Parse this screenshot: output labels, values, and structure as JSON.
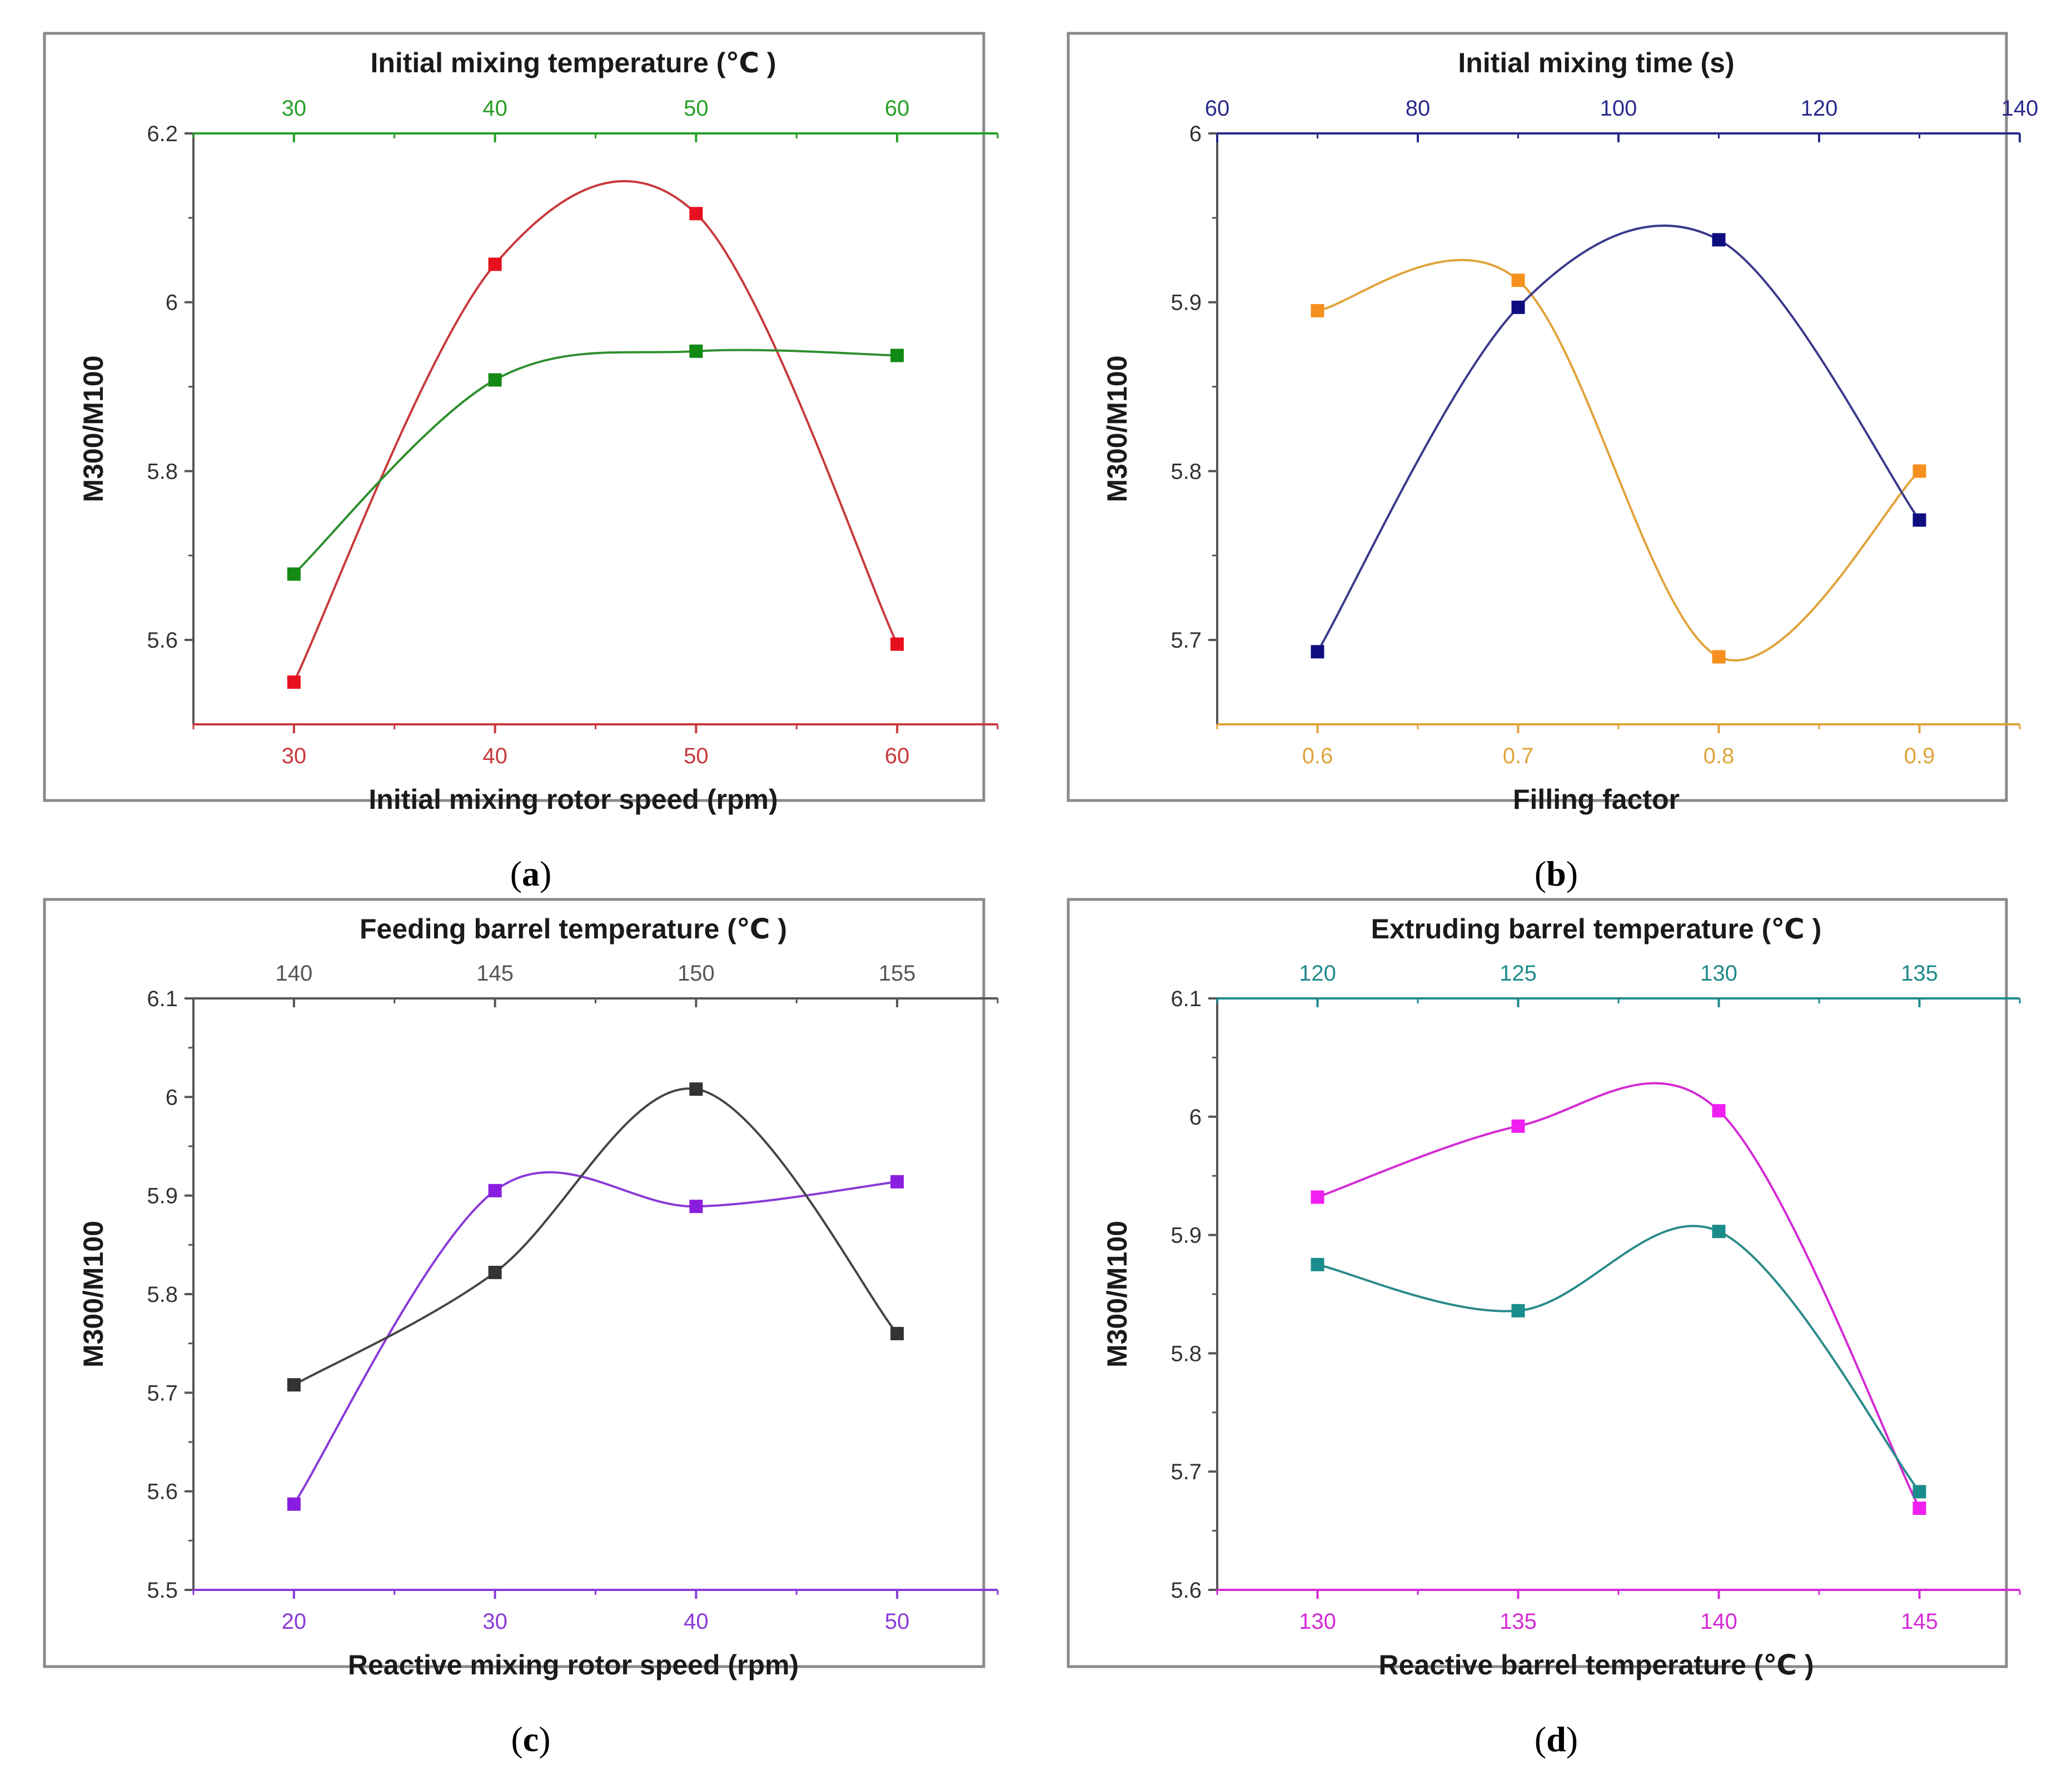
{
  "chart_data": [
    {
      "id": "a",
      "type": "line",
      "caption": "a",
      "ylabel": "M300/M100",
      "ylim": [
        5.5,
        6.2
      ],
      "yticks": [
        5.6,
        5.8,
        6.0,
        6.2
      ],
      "bottom_axis": {
        "title": "Initial mixing rotor speed (rpm)",
        "color": "#c8393c",
        "range": [
          25,
          65
        ],
        "ticks": [
          30,
          40,
          50,
          60
        ],
        "tick_labels": [
          "30",
          "40",
          "50",
          "60"
        ]
      },
      "top_axis": {
        "title": "Initial mixing temperature (℃ )",
        "color": "#27a027",
        "range": [
          25,
          65
        ],
        "ticks": [
          30,
          40,
          50,
          60
        ],
        "tick_labels": [
          "30",
          "40",
          "50",
          "60"
        ]
      },
      "series": [
        {
          "name": "Initial mixing rotor speed",
          "axis": "bottom",
          "color": "#e8101e",
          "line_color": "#c8393c",
          "x": [
            30,
            40,
            50,
            60
          ],
          "y": [
            5.55,
            6.045,
            6.105,
            5.595
          ]
        },
        {
          "name": "Initial mixing temperature",
          "axis": "top",
          "color": "#138a13",
          "line_color": "#2f8f2f",
          "x": [
            30,
            40,
            50,
            60
          ],
          "y": [
            5.678,
            5.908,
            5.942,
            5.937
          ]
        }
      ]
    },
    {
      "id": "b",
      "type": "line",
      "caption": "b",
      "ylabel": "M300/M100",
      "ylim": [
        5.65,
        6.0
      ],
      "yticks": [
        5.7,
        5.8,
        5.9,
        6.0
      ],
      "bottom_axis": {
        "title": "Filling factor",
        "color": "#e0a33a",
        "range": [
          0.55,
          0.95
        ],
        "ticks": [
          0.6,
          0.7,
          0.8,
          0.9
        ],
        "tick_labels": [
          "0.6",
          "0.7",
          "0.8",
          "0.9"
        ]
      },
      "top_axis": {
        "title": "Initial mixing time (s)",
        "color": "#2a2a8c",
        "range": [
          60,
          140
        ],
        "ticks": [
          60,
          80,
          100,
          120,
          140
        ],
        "tick_labels": [
          "60",
          "80",
          "100",
          "120",
          "140"
        ]
      },
      "series": [
        {
          "name": "Filling factor",
          "axis": "bottom",
          "color": "#f5901e",
          "line_color": "#e0a33a",
          "x": [
            0.6,
            0.7,
            0.8,
            0.9
          ],
          "y": [
            5.895,
            5.913,
            5.69,
            5.8
          ]
        },
        {
          "name": "Initial mixing time",
          "axis": "top",
          "color": "#0d0d80",
          "line_color": "#3a3a8c",
          "x": [
            70,
            90,
            110,
            130
          ],
          "y": [
            5.693,
            5.897,
            5.937,
            5.771
          ]
        }
      ]
    },
    {
      "id": "c",
      "type": "line",
      "caption": "c",
      "ylabel": "M300/M100",
      "ylim": [
        5.5,
        6.1
      ],
      "yticks": [
        5.5,
        5.6,
        5.7,
        5.8,
        5.9,
        6.0,
        6.1
      ],
      "bottom_axis": {
        "title": "Reactive mixing rotor speed (rpm)",
        "color": "#8a3ad8",
        "range": [
          15,
          55
        ],
        "ticks": [
          20,
          30,
          40,
          50
        ],
        "tick_labels": [
          "20",
          "30",
          "40",
          "50"
        ]
      },
      "top_axis": {
        "title": "Feeding barrel temperature (℃ )",
        "color": "#555555",
        "range": [
          137.5,
          157.5
        ],
        "ticks": [
          140,
          145,
          150,
          155
        ],
        "tick_labels": [
          "140",
          "145",
          "150",
          "155"
        ]
      },
      "series": [
        {
          "name": "Reactive mixing rotor speed",
          "axis": "bottom",
          "color": "#8a1ee0",
          "line_color": "#8a3ad8",
          "x": [
            20,
            30,
            40,
            50
          ],
          "y": [
            5.587,
            5.905,
            5.889,
            5.914
          ]
        },
        {
          "name": "Feeding barrel temperature",
          "axis": "top",
          "color": "#333333",
          "line_color": "#444444",
          "x": [
            140,
            145,
            150,
            155
          ],
          "y": [
            5.708,
            5.822,
            6.008,
            5.76
          ]
        }
      ]
    },
    {
      "id": "d",
      "type": "line",
      "caption": "d",
      "ylabel": "M300/M100",
      "ylim": [
        5.6,
        6.1
      ],
      "yticks": [
        5.6,
        5.7,
        5.8,
        5.9,
        6.0,
        6.1
      ],
      "bottom_axis": {
        "title": "Reactive barrel temperature (℃ )",
        "color": "#d42ad4",
        "range": [
          127.5,
          147.5
        ],
        "ticks": [
          130,
          135,
          140,
          145
        ],
        "tick_labels": [
          "130",
          "135",
          "140",
          "145"
        ]
      },
      "top_axis": {
        "title": "Extruding barrel temperature (℃ )",
        "color": "#1f8a8a",
        "range": [
          117.5,
          137.5
        ],
        "ticks": [
          120,
          125,
          130,
          135
        ],
        "tick_labels": [
          "120",
          "125",
          "130",
          "135"
        ]
      },
      "series": [
        {
          "name": "Reactive barrel temperature",
          "axis": "bottom",
          "color": "#f01ef0",
          "line_color": "#d42ad4",
          "x": [
            130,
            135,
            140,
            145
          ],
          "y": [
            5.932,
            5.992,
            6.005,
            5.669
          ]
        },
        {
          "name": "Extruding barrel temperature",
          "axis": "top",
          "color": "#1a8c8c",
          "line_color": "#2a8a8a",
          "x": [
            120,
            125,
            130,
            135
          ],
          "y": [
            5.875,
            5.836,
            5.903,
            5.683
          ]
        }
      ]
    }
  ]
}
